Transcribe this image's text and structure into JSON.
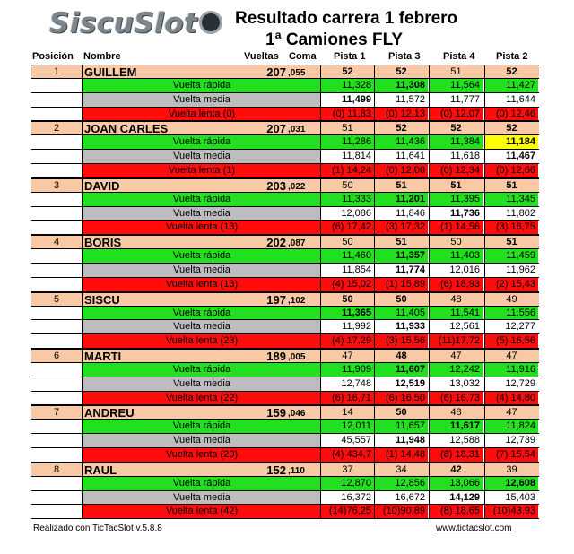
{
  "logo": "SiscuSlot",
  "title": "Resultado carrera 1 febrero",
  "subtitle": "1ª Camiones FLY",
  "headers": {
    "pos": "Posición",
    "name": "Nombre",
    "laps": "Vueltas",
    "coma": "Coma",
    "p1": "Pista 1",
    "p3": "Pista 3",
    "p4": "Pista 4",
    "p2": "Pista 2"
  },
  "row_labels": {
    "fast": "Vuelta rápida",
    "avg": "Vuelta media",
    "slow": "Vuelta  lenta"
  },
  "drivers": [
    {
      "pos": "1",
      "name": "GUILLEM",
      "laps": "207",
      "coma": ",055",
      "pistas": [
        "52",
        "52",
        "51",
        "52"
      ],
      "fast": [
        "11,328",
        "11,308",
        "11,564",
        "11,427"
      ],
      "avg": [
        "11,499",
        "11,572",
        "11,777",
        "11,644"
      ],
      "slow_count": "(0)",
      "slow": [
        "(0) 11,83",
        "(0) 12,13",
        "(0) 12,07",
        "(0) 12,46"
      ]
    },
    {
      "pos": "2",
      "name": "JOAN CARLES",
      "laps": "207",
      "coma": ",031",
      "pistas": [
        "51",
        "52",
        "52",
        "52"
      ],
      "fast": [
        "11,286",
        "11,436",
        "11,384",
        "11,184"
      ],
      "avg": [
        "11,814",
        "11,641",
        "11,618",
        "11,467"
      ],
      "slow_count": "(1)",
      "slow": [
        "(1) 14,24",
        "(0) 12,00",
        "(0) 12,34",
        "(0) 12,66"
      ]
    },
    {
      "pos": "3",
      "name": "DAVID",
      "laps": "203",
      "coma": ",022",
      "pistas": [
        "50",
        "51",
        "51",
        "51"
      ],
      "fast": [
        "11,333",
        "11,201",
        "11,395",
        "11,345"
      ],
      "avg": [
        "12,086",
        "11,846",
        "11,736",
        "11,802"
      ],
      "slow_count": "(13)",
      "slow": [
        "(6) 17,42",
        "(3) 17,32",
        "(1) 14,56",
        "(3) 16,75"
      ]
    },
    {
      "pos": "4",
      "name": "BORIS",
      "laps": "202",
      "coma": ",087",
      "pistas": [
        "50",
        "51",
        "50",
        "51"
      ],
      "fast": [
        "11,460",
        "11,357",
        "11,403",
        "11,459"
      ],
      "avg": [
        "11,854",
        "11,774",
        "12,016",
        "11,962"
      ],
      "slow_count": "(13)",
      "slow": [
        "(4) 15,02",
        "(1) 15,89",
        "(6) 18,93",
        "(2) 15,43"
      ]
    },
    {
      "pos": "5",
      "name": "SISCU",
      "laps": "197",
      "coma": ",102",
      "pistas": [
        "50",
        "50",
        "48",
        "49"
      ],
      "fast": [
        "11,365",
        "11,405",
        "11,541",
        "11,556"
      ],
      "avg": [
        "11,992",
        "11,933",
        "12,561",
        "12,277"
      ],
      "slow_count": "(23)",
      "slow": [
        "(4) 17,29",
        "(3) 15,56",
        "(11)17,72",
        "(5) 16,56"
      ]
    },
    {
      "pos": "6",
      "name": "MARTI",
      "laps": "189",
      "coma": ",005",
      "pistas": [
        "47",
        "48",
        "47",
        "47"
      ],
      "fast": [
        "11,909",
        "11,607",
        "12,242",
        "11,916"
      ],
      "avg": [
        "12,748",
        "12,519",
        "13,032",
        "12,729"
      ],
      "slow_count": "(22)",
      "slow": [
        "(6) 16,71",
        "(6) 16,50",
        "(6) 16,73",
        "(4) 14,80"
      ]
    },
    {
      "pos": "7",
      "name": "ANDREU",
      "laps": "159",
      "coma": ",046",
      "pistas": [
        "14",
        "50",
        "48",
        "47"
      ],
      "fast": [
        "12,011",
        "11,657",
        "11,617",
        "11,824"
      ],
      "avg": [
        "45,557",
        "11,948",
        "12,588",
        "12,739"
      ],
      "slow_count": "(20)",
      "slow": [
        "(4) 434,7",
        "(1) 14,48",
        "(8) 18,31",
        "(7) 15,54"
      ]
    },
    {
      "pos": "8",
      "name": "RAUL",
      "laps": "152",
      "coma": ",110",
      "pistas": [
        "37",
        "34",
        "42",
        "39"
      ],
      "fast": [
        "12,870",
        "12,856",
        "13,066",
        "12,608"
      ],
      "avg": [
        "16,372",
        "16,672",
        "14,129",
        "15,403"
      ],
      "slow_count": "(42)",
      "slow": [
        "(14)76,25",
        "(10)90,89",
        "(8) 18,65",
        "(10)43,93"
      ]
    }
  ],
  "footer": {
    "left": "Realizado con TicTacSlot v.5.8.8",
    "right": "www.tictacslot.com"
  },
  "colors": {
    "peach": "#f8c9a4",
    "green": "#22e01f",
    "gray": "#bdbdbd",
    "red": "#ff0d0d",
    "yellow": "#ffff00"
  }
}
